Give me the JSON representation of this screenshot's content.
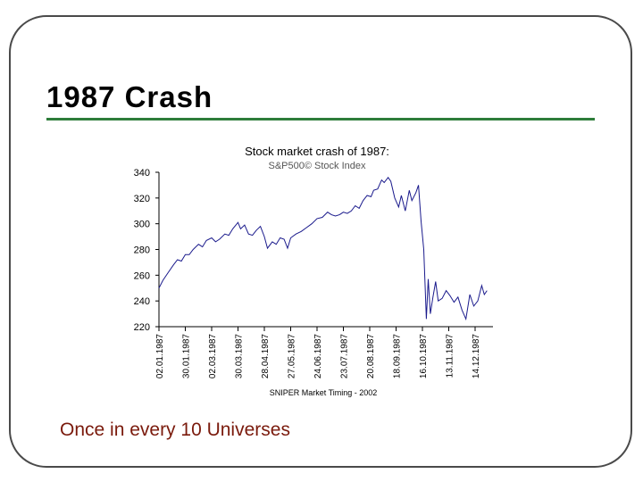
{
  "slide": {
    "title": "1987 Crash",
    "caption": "Once  in every 10 Universes"
  },
  "colors": {
    "title_rule": "#2e7d3a",
    "caption": "#7a1a0c",
    "line": "#1a1a8c",
    "axis": "#000000",
    "subtitle": "#555555"
  },
  "chart_data": {
    "type": "line",
    "title": "Stock market crash of 1987:",
    "subtitle": "S&P500©  Stock Index",
    "source": "SNIPER Market Timing - 2002",
    "xlabel": "",
    "ylabel": "",
    "ylim": [
      220,
      340
    ],
    "yticks": [
      "340",
      "320",
      "300",
      "280",
      "260",
      "240",
      "220"
    ],
    "xticks": [
      "02.01.1987",
      "30.01.1987",
      "02.03.1987",
      "30.03.1987",
      "28.04.1987",
      "27.05.1987",
      "24.06.1987",
      "23.07.1987",
      "20.08.1987",
      "18.09.1987",
      "16.10.1987",
      "13.11.1987",
      "14.12.1987"
    ],
    "x_range": [
      0,
      12.5
    ],
    "grid": false,
    "legend": "none",
    "series": [
      {
        "name": "S&P500",
        "x": [
          0,
          0.15,
          0.35,
          0.55,
          0.7,
          0.85,
          1.0,
          1.15,
          1.3,
          1.5,
          1.65,
          1.8,
          2.0,
          2.15,
          2.3,
          2.5,
          2.65,
          2.8,
          3.0,
          3.1,
          3.25,
          3.4,
          3.55,
          3.7,
          3.85,
          4.0,
          4.12,
          4.3,
          4.45,
          4.6,
          4.75,
          4.88,
          5.0,
          5.2,
          5.4,
          5.6,
          5.8,
          6.0,
          6.2,
          6.4,
          6.55,
          6.7,
          6.85,
          7.0,
          7.15,
          7.3,
          7.45,
          7.6,
          7.75,
          7.9,
          8.05,
          8.15,
          8.3,
          8.45,
          8.55,
          8.7,
          8.8,
          8.95,
          9.1,
          9.2,
          9.35,
          9.5,
          9.6,
          9.75,
          9.85,
          9.95,
          10.05,
          10.15,
          10.22,
          10.3,
          10.4,
          10.5,
          10.6,
          10.75,
          10.9,
          11.05,
          11.2,
          11.35,
          11.5,
          11.65,
          11.8,
          11.95,
          12.1,
          12.25,
          12.35,
          12.45
        ],
        "y": [
          250,
          256,
          262,
          268,
          272,
          271,
          276,
          276,
          280,
          284,
          282,
          287,
          289,
          286,
          288,
          292,
          291,
          296,
          301,
          296,
          299,
          292,
          291,
          295,
          298,
          290,
          281,
          286,
          284,
          289,
          288,
          281,
          289,
          292,
          294,
          297,
          300,
          304,
          305,
          309,
          307,
          306,
          307,
          309,
          308,
          310,
          314,
          312,
          318,
          322,
          321,
          326,
          327,
          334,
          332,
          336,
          333,
          320,
          313,
          322,
          310,
          326,
          318,
          324,
          330,
          302,
          280,
          226,
          257,
          230,
          243,
          255,
          240,
          242,
          248,
          244,
          239,
          243,
          233,
          226,
          245,
          236,
          240,
          252,
          245,
          248
        ]
      }
    ]
  }
}
